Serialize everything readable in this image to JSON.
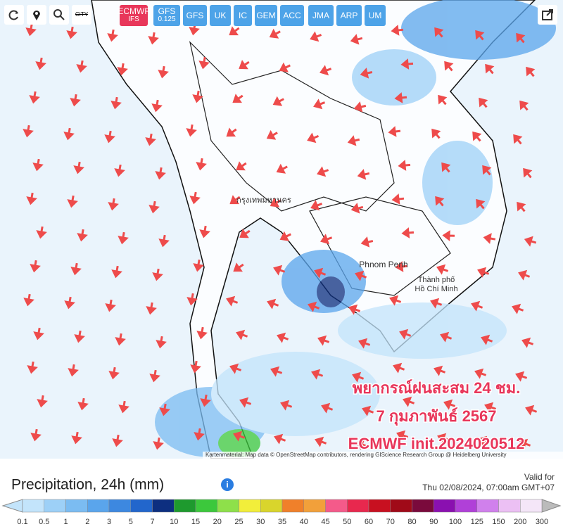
{
  "toolbar": {
    "city": "CITY",
    "models": [
      {
        "label": "ECMWF",
        "sublabel": "IFS",
        "active": true
      },
      {
        "label": "GFS",
        "sublabel": "0.125",
        "active": false
      },
      {
        "label": "GFS",
        "active": false
      },
      {
        "label": "UK",
        "active": false
      },
      {
        "label": "IC",
        "active": false
      },
      {
        "label": "GEM",
        "active": false
      },
      {
        "label": "ACC",
        "active": false
      },
      {
        "label": "JMA",
        "active": false
      },
      {
        "label": "ARP",
        "active": false
      },
      {
        "label": "UM",
        "active": false
      }
    ]
  },
  "map": {
    "labels": {
      "bangkok": "กรุงเทพมหานคร",
      "phnom_penh": "Phnom Penh",
      "hcmc_line1": "Thành phố",
      "hcmc_line2": "Hồ Chí Minh"
    },
    "overlay": [
      "พยากรณ์ฝนสะสม 24 ชม.",
      "7 กุมภาพันธ์ 2567",
      "ECMWF init.2024020512"
    ],
    "attribution": "Kartenmaterial: Map data © OpenStreetMap contributors, rendering GIScience Research Group @ Heidelberg University"
  },
  "legend": {
    "title": "Precipitation, 24h (mm)",
    "valid_label": "Valid for",
    "valid_time": "Thu 02/08/2024, 07:00am GMT+07",
    "ticks": [
      "0.1",
      "0.5",
      "1",
      "2",
      "3",
      "5",
      "7",
      "10",
      "15",
      "20",
      "25",
      "30",
      "35",
      "40",
      "45",
      "50",
      "60",
      "70",
      "80",
      "90",
      "100",
      "125",
      "150",
      "200",
      "300"
    ],
    "colors": [
      "#c3e4fb",
      "#9dd0f7",
      "#7bbcf2",
      "#5aa5ec",
      "#3d88e0",
      "#2266cc",
      "#0d2f80",
      "#1e9a2e",
      "#3cc83c",
      "#8ee04a",
      "#f2ee3a",
      "#d9d52c",
      "#f0802a",
      "#f2a03a",
      "#f45a8a",
      "#e8284e",
      "#c81020",
      "#a00a18",
      "#7a0a3c",
      "#8a10b0",
      "#b040d8",
      "#d080ec",
      "#ecc0f4",
      "#f4e6f8"
    ]
  }
}
